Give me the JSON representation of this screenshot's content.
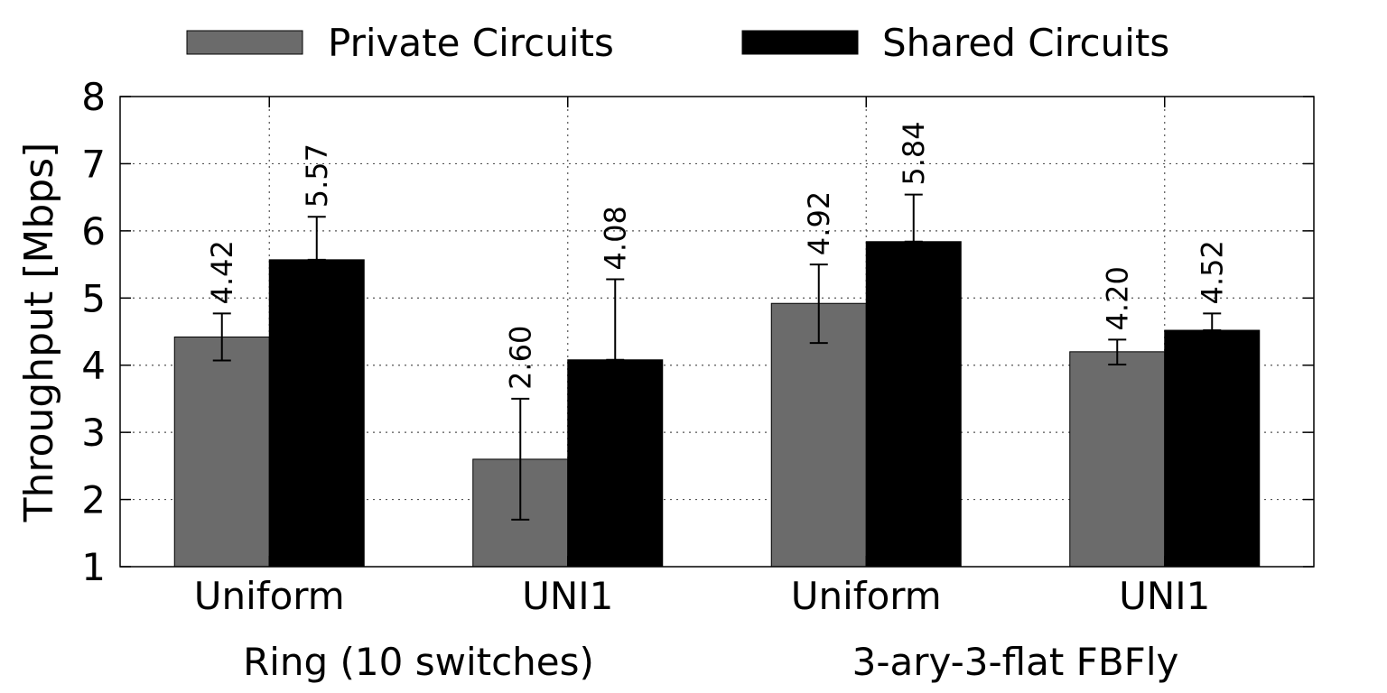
{
  "chart_data": {
    "type": "bar",
    "categories": [
      "Uniform",
      "UNI1",
      "Uniform",
      "UNI1"
    ],
    "groups": [
      {
        "label": "Ring (10 switches)",
        "categories": [
          0,
          1
        ]
      },
      {
        "label": "3-ary-3-flat FBFly",
        "categories": [
          2,
          3
        ]
      }
    ],
    "series": [
      {
        "name": "Private Circuits",
        "color": "#6b6b6b",
        "values": [
          4.42,
          2.6,
          4.92,
          4.2
        ],
        "labels": [
          "4.42",
          "2.60",
          "4.92",
          "4.20"
        ],
        "error_low": [
          4.07,
          1.7,
          4.33,
          4.01
        ],
        "error_high": [
          4.77,
          3.5,
          5.5,
          4.38
        ]
      },
      {
        "name": "Shared Circuits",
        "color": "#000000",
        "values": [
          5.57,
          4.08,
          5.84,
          4.52
        ],
        "labels": [
          "5.57",
          "4.08",
          "5.84",
          "4.52"
        ],
        "error_low": [
          5.57,
          4.08,
          5.84,
          4.52
        ],
        "error_high": [
          6.21,
          5.28,
          6.54,
          4.77
        ]
      }
    ],
    "ylabel": "Throughput [Mbps]",
    "ylim": [
      1,
      8
    ],
    "yticks": [
      1,
      2,
      3,
      4,
      5,
      6,
      7,
      8
    ],
    "grid": true,
    "legend_position": "top"
  }
}
